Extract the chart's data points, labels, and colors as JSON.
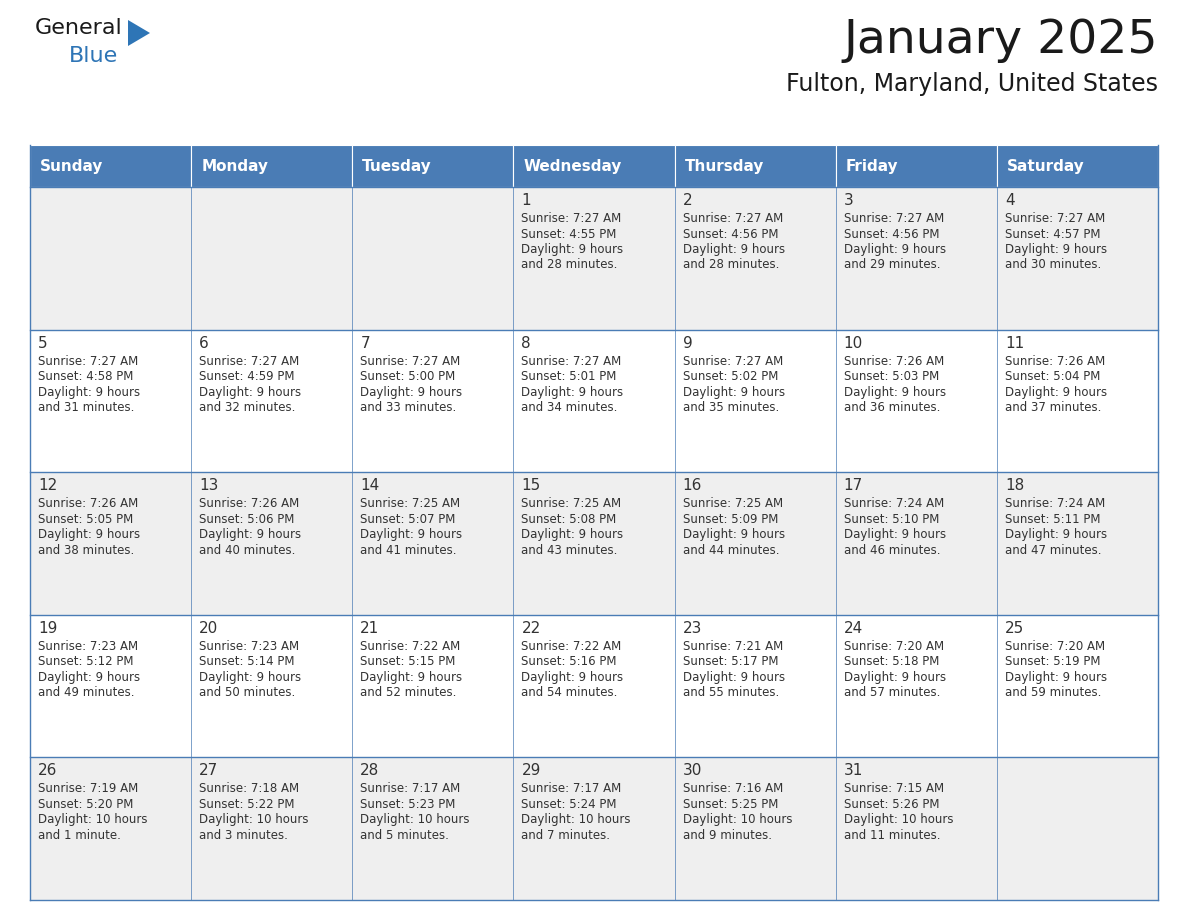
{
  "title": "January 2025",
  "subtitle": "Fulton, Maryland, United States",
  "days_of_week": [
    "Sunday",
    "Monday",
    "Tuesday",
    "Wednesday",
    "Thursday",
    "Friday",
    "Saturday"
  ],
  "header_bg_color": "#4A7CB5",
  "header_text_color": "#FFFFFF",
  "odd_row_bg": "#EFEFEF",
  "even_row_bg": "#FFFFFF",
  "border_color": "#4A7CB5",
  "day_num_color": "#333333",
  "cell_text_color": "#333333",
  "logo_general_color": "#1a1a1a",
  "logo_blue_color": "#2E75B6",
  "fig_width": 11.88,
  "fig_height": 9.18,
  "calendar_data": [
    [
      null,
      null,
      null,
      {
        "day": "1",
        "sunrise": "7:27 AM",
        "sunset": "4:55 PM",
        "daylight_line1": "Daylight: 9 hours",
        "daylight_line2": "and 28 minutes."
      },
      {
        "day": "2",
        "sunrise": "7:27 AM",
        "sunset": "4:56 PM",
        "daylight_line1": "Daylight: 9 hours",
        "daylight_line2": "and 28 minutes."
      },
      {
        "day": "3",
        "sunrise": "7:27 AM",
        "sunset": "4:56 PM",
        "daylight_line1": "Daylight: 9 hours",
        "daylight_line2": "and 29 minutes."
      },
      {
        "day": "4",
        "sunrise": "7:27 AM",
        "sunset": "4:57 PM",
        "daylight_line1": "Daylight: 9 hours",
        "daylight_line2": "and 30 minutes."
      }
    ],
    [
      {
        "day": "5",
        "sunrise": "7:27 AM",
        "sunset": "4:58 PM",
        "daylight_line1": "Daylight: 9 hours",
        "daylight_line2": "and 31 minutes."
      },
      {
        "day": "6",
        "sunrise": "7:27 AM",
        "sunset": "4:59 PM",
        "daylight_line1": "Daylight: 9 hours",
        "daylight_line2": "and 32 minutes."
      },
      {
        "day": "7",
        "sunrise": "7:27 AM",
        "sunset": "5:00 PM",
        "daylight_line1": "Daylight: 9 hours",
        "daylight_line2": "and 33 minutes."
      },
      {
        "day": "8",
        "sunrise": "7:27 AM",
        "sunset": "5:01 PM",
        "daylight_line1": "Daylight: 9 hours",
        "daylight_line2": "and 34 minutes."
      },
      {
        "day": "9",
        "sunrise": "7:27 AM",
        "sunset": "5:02 PM",
        "daylight_line1": "Daylight: 9 hours",
        "daylight_line2": "and 35 minutes."
      },
      {
        "day": "10",
        "sunrise": "7:26 AM",
        "sunset": "5:03 PM",
        "daylight_line1": "Daylight: 9 hours",
        "daylight_line2": "and 36 minutes."
      },
      {
        "day": "11",
        "sunrise": "7:26 AM",
        "sunset": "5:04 PM",
        "daylight_line1": "Daylight: 9 hours",
        "daylight_line2": "and 37 minutes."
      }
    ],
    [
      {
        "day": "12",
        "sunrise": "7:26 AM",
        "sunset": "5:05 PM",
        "daylight_line1": "Daylight: 9 hours",
        "daylight_line2": "and 38 minutes."
      },
      {
        "day": "13",
        "sunrise": "7:26 AM",
        "sunset": "5:06 PM",
        "daylight_line1": "Daylight: 9 hours",
        "daylight_line2": "and 40 minutes."
      },
      {
        "day": "14",
        "sunrise": "7:25 AM",
        "sunset": "5:07 PM",
        "daylight_line1": "Daylight: 9 hours",
        "daylight_line2": "and 41 minutes."
      },
      {
        "day": "15",
        "sunrise": "7:25 AM",
        "sunset": "5:08 PM",
        "daylight_line1": "Daylight: 9 hours",
        "daylight_line2": "and 43 minutes."
      },
      {
        "day": "16",
        "sunrise": "7:25 AM",
        "sunset": "5:09 PM",
        "daylight_line1": "Daylight: 9 hours",
        "daylight_line2": "and 44 minutes."
      },
      {
        "day": "17",
        "sunrise": "7:24 AM",
        "sunset": "5:10 PM",
        "daylight_line1": "Daylight: 9 hours",
        "daylight_line2": "and 46 minutes."
      },
      {
        "day": "18",
        "sunrise": "7:24 AM",
        "sunset": "5:11 PM",
        "daylight_line1": "Daylight: 9 hours",
        "daylight_line2": "and 47 minutes."
      }
    ],
    [
      {
        "day": "19",
        "sunrise": "7:23 AM",
        "sunset": "5:12 PM",
        "daylight_line1": "Daylight: 9 hours",
        "daylight_line2": "and 49 minutes."
      },
      {
        "day": "20",
        "sunrise": "7:23 AM",
        "sunset": "5:14 PM",
        "daylight_line1": "Daylight: 9 hours",
        "daylight_line2": "and 50 minutes."
      },
      {
        "day": "21",
        "sunrise": "7:22 AM",
        "sunset": "5:15 PM",
        "daylight_line1": "Daylight: 9 hours",
        "daylight_line2": "and 52 minutes."
      },
      {
        "day": "22",
        "sunrise": "7:22 AM",
        "sunset": "5:16 PM",
        "daylight_line1": "Daylight: 9 hours",
        "daylight_line2": "and 54 minutes."
      },
      {
        "day": "23",
        "sunrise": "7:21 AM",
        "sunset": "5:17 PM",
        "daylight_line1": "Daylight: 9 hours",
        "daylight_line2": "and 55 minutes."
      },
      {
        "day": "24",
        "sunrise": "7:20 AM",
        "sunset": "5:18 PM",
        "daylight_line1": "Daylight: 9 hours",
        "daylight_line2": "and 57 minutes."
      },
      {
        "day": "25",
        "sunrise": "7:20 AM",
        "sunset": "5:19 PM",
        "daylight_line1": "Daylight: 9 hours",
        "daylight_line2": "and 59 minutes."
      }
    ],
    [
      {
        "day": "26",
        "sunrise": "7:19 AM",
        "sunset": "5:20 PM",
        "daylight_line1": "Daylight: 10 hours",
        "daylight_line2": "and 1 minute."
      },
      {
        "day": "27",
        "sunrise": "7:18 AM",
        "sunset": "5:22 PM",
        "daylight_line1": "Daylight: 10 hours",
        "daylight_line2": "and 3 minutes."
      },
      {
        "day": "28",
        "sunrise": "7:17 AM",
        "sunset": "5:23 PM",
        "daylight_line1": "Daylight: 10 hours",
        "daylight_line2": "and 5 minutes."
      },
      {
        "day": "29",
        "sunrise": "7:17 AM",
        "sunset": "5:24 PM",
        "daylight_line1": "Daylight: 10 hours",
        "daylight_line2": "and 7 minutes."
      },
      {
        "day": "30",
        "sunrise": "7:16 AM",
        "sunset": "5:25 PM",
        "daylight_line1": "Daylight: 10 hours",
        "daylight_line2": "and 9 minutes."
      },
      {
        "day": "31",
        "sunrise": "7:15 AM",
        "sunset": "5:26 PM",
        "daylight_line1": "Daylight: 10 hours",
        "daylight_line2": "and 11 minutes."
      },
      null
    ]
  ]
}
